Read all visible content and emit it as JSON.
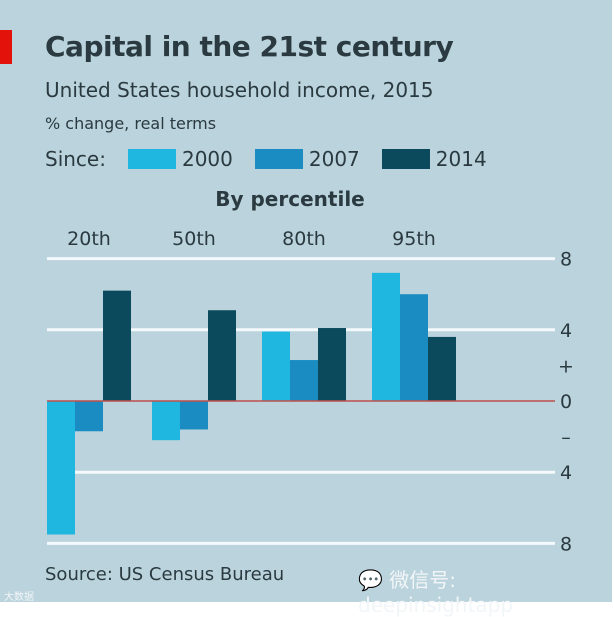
{
  "chart_data": {
    "type": "bar",
    "title": "Capital in the 21st century",
    "subtitle": "United States household income, 2015",
    "ylabel": "% change, real terms",
    "legend_title": "Since:",
    "xlabel": "By percentile",
    "categories": [
      "20th",
      "50th",
      "80th",
      "95th"
    ],
    "series": [
      {
        "name": "2000",
        "color": "#1fb7e0",
        "values": [
          -7.5,
          -2.2,
          3.9,
          7.2
        ]
      },
      {
        "name": "2007",
        "color": "#1a8cc2",
        "values": [
          -1.7,
          -1.6,
          2.3,
          6.0
        ]
      },
      {
        "name": "2014",
        "color": "#0b4a5c",
        "values": [
          6.2,
          5.1,
          4.1,
          3.6
        ]
      }
    ],
    "ylim": [
      -8,
      8
    ],
    "yticks": [
      {
        "value": 8,
        "label": "8"
      },
      {
        "value": 4,
        "label": "4"
      },
      {
        "value": 2,
        "label": "+"
      },
      {
        "value": 0,
        "label": "0"
      },
      {
        "value": -2,
        "label": "–"
      },
      {
        "value": -4,
        "label": "4"
      },
      {
        "value": -8,
        "label": "8"
      }
    ],
    "legend_placement": "top"
  },
  "source": "Source: US Census Bureau",
  "watermark": "微信号: deepinsightapp",
  "watermark2": "大数据"
}
